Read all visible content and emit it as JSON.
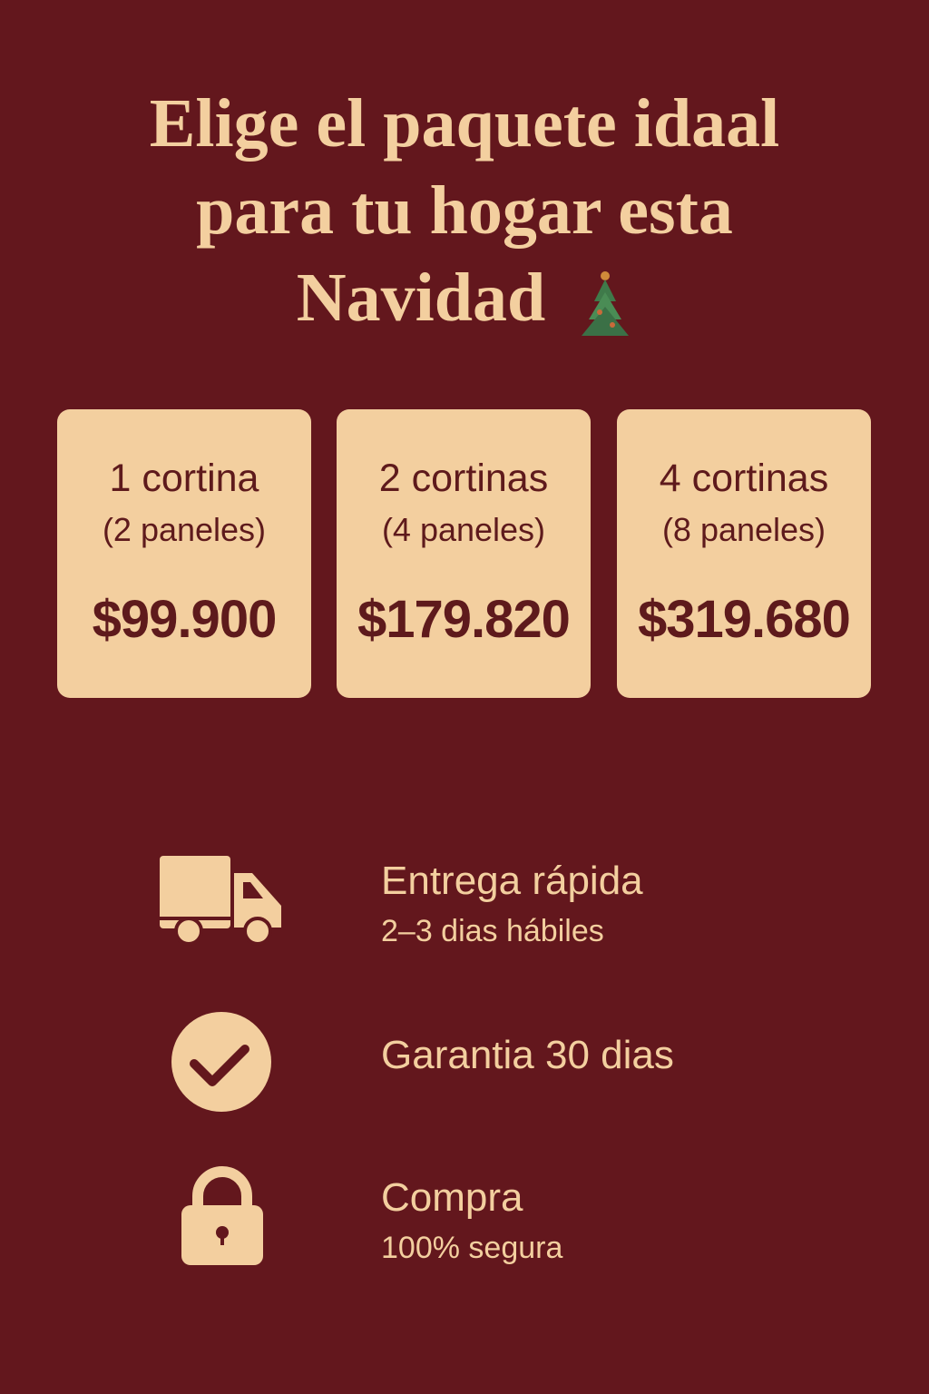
{
  "title": {
    "line1": "Elige el paquete idaal",
    "line2": "para tu hogar esta",
    "line3": "Navidad",
    "emoji_icon": "christmas-tree-icon"
  },
  "packages": [
    {
      "name": "1 cortina",
      "detail": "(2 paneles)",
      "price": "$99.900"
    },
    {
      "name": "2 cortinas",
      "detail": "(4 paneles)",
      "price": "$179.820"
    },
    {
      "name": "4 cortinas",
      "detail": "(8 paneles)",
      "price": "$319.680"
    }
  ],
  "features": [
    {
      "icon": "truck-icon",
      "title": "Entrega rápida",
      "subtitle": "2–3 dias hábiles"
    },
    {
      "icon": "check-circle-icon",
      "title": "Garantia 30 dias"
    },
    {
      "icon": "lock-icon",
      "title": "Compra",
      "subtitle": "100% segura"
    }
  ],
  "colors": {
    "background": "#63171d",
    "accent": "#f3cf9f",
    "card_text": "#5e1a1c"
  }
}
